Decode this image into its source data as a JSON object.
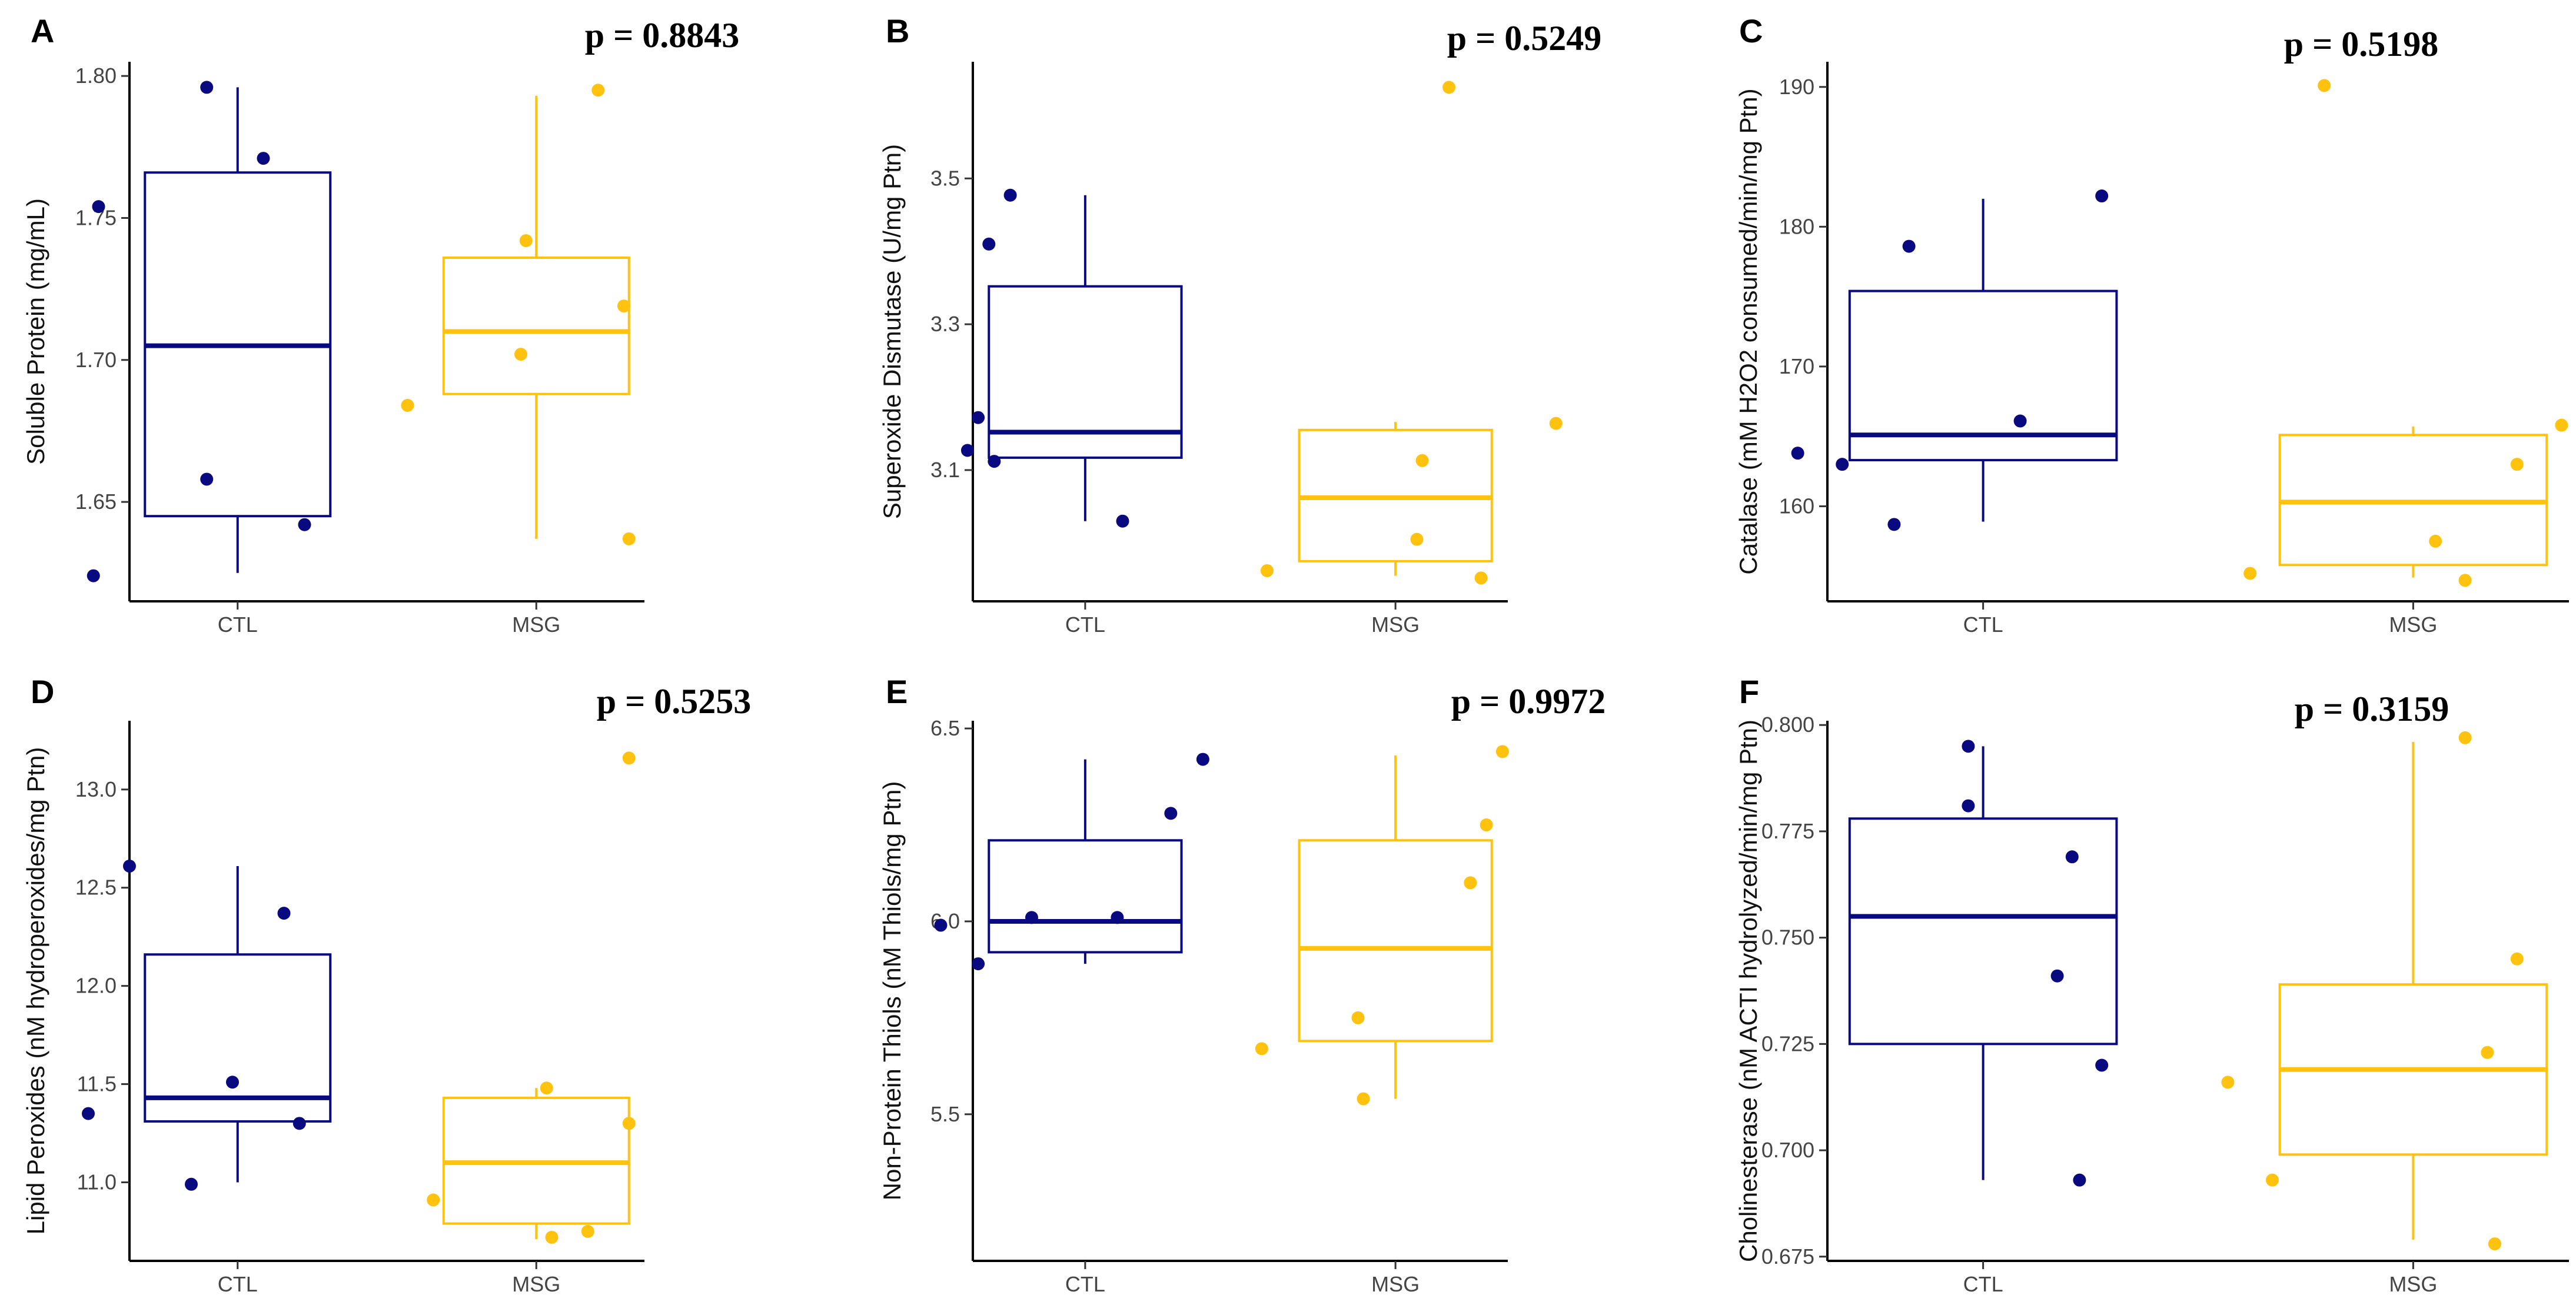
{
  "chart_data": [
    {
      "panel": "A",
      "type": "box",
      "p_value": "p = 0.8843",
      "ylabel": "Soluble Protein (mg/mL)",
      "ylim": [
        1.615,
        1.805
      ],
      "yticks": [
        1.65,
        1.7,
        1.75,
        1.8
      ],
      "ytick_labels": [
        "1.65",
        "1.70",
        "1.75",
        "1.80"
      ],
      "groups": [
        {
          "name": "CTL",
          "color": "#0a0a80",
          "q1": 1.645,
          "median": 1.705,
          "q3": 1.766,
          "whisker_low": 1.625,
          "whisker_high": 1.796,
          "points": [
            [
              -0.28,
              1.624
            ],
            [
              -0.27,
              1.754
            ],
            [
              -0.06,
              1.796
            ],
            [
              0.05,
              1.771
            ],
            [
              -0.06,
              1.658
            ],
            [
              0.13,
              1.642
            ]
          ]
        },
        {
          "name": "MSG",
          "color": "#ffc20e",
          "q1": 1.688,
          "median": 1.71,
          "q3": 1.736,
          "whisker_low": 1.637,
          "whisker_high": 1.793,
          "points": [
            [
              -0.25,
              1.684
            ],
            [
              -0.03,
              1.702
            ],
            [
              -0.02,
              1.742
            ],
            [
              0.17,
              1.719
            ],
            [
              0.12,
              1.795
            ],
            [
              0.18,
              1.637
            ]
          ]
        }
      ]
    },
    {
      "panel": "B",
      "type": "box",
      "p_value": "p = 0.5249",
      "ylabel": "Superoxide Dismutase (U/mg Ptn)",
      "ylim": [
        2.92,
        3.66
      ],
      "yticks": [
        3.1,
        3.3,
        3.5
      ],
      "ytick_labels": [
        "3.1",
        "3.3",
        "3.5"
      ],
      "groups": [
        {
          "name": "CTL",
          "color": "#0a0a80",
          "q1": 3.117,
          "median": 3.152,
          "q3": 3.352,
          "whisker_low": 3.03,
          "whisker_high": 3.477,
          "points": [
            [
              -0.22,
              3.127
            ],
            [
              -0.2,
              3.172
            ],
            [
              -0.17,
              3.112
            ],
            [
              -0.18,
              3.41
            ],
            [
              -0.14,
              3.477
            ],
            [
              0.07,
              3.03
            ]
          ]
        },
        {
          "name": "MSG",
          "color": "#ffc20e",
          "q1": 2.975,
          "median": 3.062,
          "q3": 3.155,
          "whisker_low": 2.955,
          "whisker_high": 3.166,
          "points": [
            [
              -0.24,
              2.962
            ],
            [
              0.04,
              3.005
            ],
            [
              0.05,
              3.113
            ],
            [
              0.16,
              2.952
            ],
            [
              0.3,
              3.164
            ],
            [
              0.1,
              3.625
            ]
          ]
        }
      ]
    },
    {
      "panel": "C",
      "type": "box",
      "p_value": "p = 0.5198",
      "ylabel": "Catalase (mM H2O2 consumed/min/mg Ptn)",
      "ylim": [
        153.2,
        191.8
      ],
      "yticks": [
        160,
        170,
        180,
        190
      ],
      "ytick_labels": [
        "160",
        "170",
        "180",
        "190"
      ],
      "groups": [
        {
          "name": "CTL",
          "color": "#0a0a80",
          "q1": 163.3,
          "median": 165.1,
          "q3": 175.4,
          "whisker_low": 158.9,
          "whisker_high": 182.0,
          "points": [
            [
              -0.25,
              163.8
            ],
            [
              -0.19,
              163.0
            ],
            [
              -0.12,
              158.7
            ],
            [
              -0.1,
              178.6
            ],
            [
              0.05,
              166.1
            ],
            [
              0.16,
              182.2
            ]
          ]
        },
        {
          "name": "MSG",
          "color": "#ffc20e",
          "q1": 155.8,
          "median": 160.3,
          "q3": 165.1,
          "whisker_low": 154.9,
          "whisker_high": 165.7,
          "points": [
            [
              -0.22,
              155.2
            ],
            [
              0.03,
              157.5
            ],
            [
              -0.12,
              190.1
            ],
            [
              0.07,
              154.7
            ],
            [
              0.14,
              163.0
            ],
            [
              0.2,
              165.8
            ]
          ]
        }
      ]
    },
    {
      "panel": "D",
      "type": "box",
      "p_value": "p = 0.5253",
      "ylabel": "Lipid Peroxides (nM hydroperoxides/mg Ptn)",
      "ylim": [
        10.6,
        13.35
      ],
      "yticks": [
        11.0,
        11.5,
        12.0,
        12.5,
        13.0
      ],
      "ytick_labels": [
        "11.0",
        "11.5",
        "12.0",
        "12.5",
        "13.0"
      ],
      "groups": [
        {
          "name": "CTL",
          "color": "#0a0a80",
          "q1": 11.31,
          "median": 11.43,
          "q3": 12.16,
          "whisker_low": 11.0,
          "whisker_high": 12.61,
          "points": [
            [
              -0.21,
              12.61
            ],
            [
              -0.29,
              11.35
            ],
            [
              -0.09,
              10.99
            ],
            [
              0.12,
              11.3
            ],
            [
              -0.01,
              11.51
            ],
            [
              0.09,
              12.37
            ]
          ]
        },
        {
          "name": "MSG",
          "color": "#ffc20e",
          "q1": 10.79,
          "median": 11.1,
          "q3": 11.43,
          "whisker_low": 10.71,
          "whisker_high": 11.48,
          "points": [
            [
              -0.2,
              10.91
            ],
            [
              0.02,
              11.48
            ],
            [
              0.1,
              10.75
            ],
            [
              0.03,
              10.72
            ],
            [
              0.18,
              11.3
            ],
            [
              0.18,
              13.16
            ]
          ]
        }
      ]
    },
    {
      "panel": "E",
      "type": "box",
      "p_value": "p = 0.9972",
      "ylabel": "Non-Protein Thiols (nM Thiols/mg Ptn)",
      "ylim": [
        5.12,
        6.52
      ],
      "yticks": [
        5.5,
        6.0,
        6.5
      ],
      "ytick_labels": [
        "5.5",
        "6.0",
        "6.5"
      ],
      "groups": [
        {
          "name": "CTL",
          "color": "#0a0a80",
          "q1": 5.92,
          "median": 6.0,
          "q3": 6.21,
          "whisker_low": 5.89,
          "whisker_high": 6.42,
          "points": [
            [
              -0.27,
              5.99
            ],
            [
              -0.2,
              5.89
            ],
            [
              -0.1,
              6.01
            ],
            [
              0.06,
              6.01
            ],
            [
              0.16,
              6.28
            ],
            [
              0.22,
              6.42
            ]
          ]
        },
        {
          "name": "MSG",
          "color": "#ffc20e",
          "q1": 5.69,
          "median": 5.93,
          "q3": 6.21,
          "whisker_low": 5.54,
          "whisker_high": 6.43,
          "points": [
            [
              -0.25,
              5.67
            ],
            [
              -0.07,
              5.75
            ],
            [
              -0.06,
              5.54
            ],
            [
              0.14,
              6.1
            ],
            [
              0.17,
              6.25
            ],
            [
              0.2,
              6.44
            ]
          ]
        }
      ]
    },
    {
      "panel": "F",
      "type": "box",
      "p_value": "p = 0.3159",
      "ylabel": "Cholinesterase (nM ACTI hydrolyzed/min/mg Ptn)",
      "ylim": [
        0.674,
        0.801
      ],
      "yticks": [
        0.675,
        0.7,
        0.725,
        0.75,
        0.775,
        0.8
      ],
      "ytick_labels": [
        "0.675",
        "0.700",
        "0.725",
        "0.750",
        "0.775",
        "0.800"
      ],
      "groups": [
        {
          "name": "CTL",
          "color": "#0a0a80",
          "q1": 0.725,
          "median": 0.755,
          "q3": 0.778,
          "whisker_low": 0.693,
          "whisker_high": 0.795,
          "points": [
            [
              -0.02,
              0.795
            ],
            [
              -0.02,
              0.781
            ],
            [
              0.12,
              0.769
            ],
            [
              0.1,
              0.741
            ],
            [
              0.16,
              0.72
            ],
            [
              0.13,
              0.693
            ]
          ]
        },
        {
          "name": "MSG",
          "color": "#ffc20e",
          "q1": 0.699,
          "median": 0.719,
          "q3": 0.739,
          "whisker_low": 0.679,
          "whisker_high": 0.796,
          "points": [
            [
              -0.25,
              0.716
            ],
            [
              -0.19,
              0.693
            ],
            [
              0.1,
              0.723
            ],
            [
              0.07,
              0.797
            ],
            [
              0.14,
              0.745
            ],
            [
              0.11,
              0.678
            ]
          ]
        }
      ]
    }
  ]
}
